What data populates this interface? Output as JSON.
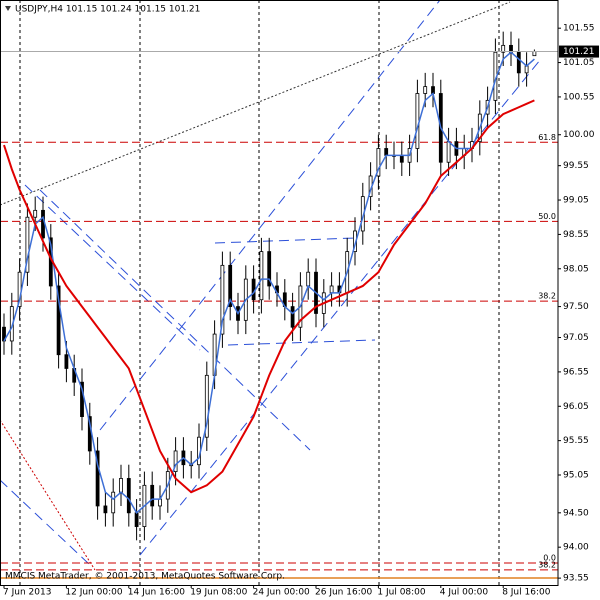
{
  "chart_data": {
    "type": "candlestick",
    "title": "USDJPY,H4  101.15 101.24 101.15 101.21",
    "footer": "MMCIS MetaTrader, © 2001-2013, MetaQuotes Software Corp.",
    "categories": [
      "7 Jun 2013",
      null,
      null,
      null,
      null,
      null,
      null,
      null,
      "12 Jun 00:00",
      null,
      null,
      null,
      null,
      null,
      null,
      null,
      "14 Jun 16:00",
      null,
      null,
      null,
      null,
      null,
      null,
      null,
      "19 Jun 08:00",
      null,
      null,
      null,
      null,
      null,
      null,
      null,
      "24 Jun 00:00",
      null,
      null,
      null,
      null,
      null,
      null,
      null,
      "26 Jun 16:00",
      null,
      null,
      null,
      null,
      null,
      null,
      null,
      "1 Jul 08:00",
      null,
      null,
      null,
      null,
      null,
      null,
      null,
      "4 Jul 00:00",
      null,
      null,
      null,
      null,
      null,
      null,
      null,
      "8 Jul 16:00",
      null,
      null,
      null,
      null
    ],
    "open": [
      97.2,
      97.0,
      97.5,
      98.0,
      98.8,
      98.9,
      98.5,
      97.8,
      96.8,
      96.6,
      96.4,
      95.9,
      95.4,
      94.6,
      94.5,
      94.8,
      95.0,
      94.5,
      94.3,
      94.9,
      94.6,
      94.7,
      95.1,
      95.4,
      95.2,
      95.2,
      95.6,
      96.5,
      97.1,
      98.1,
      97.5,
      97.3,
      97.9,
      97.6,
      98.3,
      97.8,
      97.7,
      97.5,
      97.2,
      97.8,
      98.0,
      97.4,
      97.7,
      97.8,
      97.7,
      98.3,
      98.6,
      99.1,
      99.4,
      99.8,
      99.7,
      99.7,
      99.6,
      99.8,
      100.6,
      100.7,
      100.6,
      99.6,
      99.9,
      99.7,
      99.8,
      99.9,
      100.3,
      100.5,
      101.2,
      101.3,
      101.2,
      100.9,
      101.15
    ],
    "high": [
      97.4,
      97.7,
      98.2,
      99.0,
      99.1,
      99.1,
      98.7,
      98.0,
      97.0,
      96.8,
      96.6,
      96.1,
      95.6,
      94.8,
      95.0,
      95.2,
      95.2,
      94.7,
      95.1,
      95.1,
      94.9,
      95.3,
      95.6,
      95.6,
      95.4,
      95.8,
      96.7,
      97.3,
      98.3,
      98.3,
      97.7,
      98.1,
      98.1,
      98.5,
      98.5,
      98.0,
      97.9,
      97.7,
      98.0,
      98.2,
      98.2,
      97.9,
      98.0,
      98.0,
      98.5,
      98.8,
      99.3,
      99.6,
      100.0,
      100.0,
      99.9,
      99.9,
      100.0,
      100.8,
      100.9,
      100.9,
      100.8,
      100.1,
      100.1,
      100.0,
      100.1,
      100.5,
      100.7,
      101.4,
      101.5,
      101.5,
      101.4,
      101.2,
      101.24
    ],
    "low": [
      96.8,
      96.8,
      97.3,
      97.8,
      98.6,
      98.3,
      97.6,
      96.6,
      96.4,
      96.2,
      95.7,
      95.2,
      94.4,
      94.3,
      94.3,
      94.6,
      94.3,
      94.1,
      94.1,
      94.4,
      94.4,
      94.5,
      94.9,
      95.0,
      95.0,
      95.0,
      95.4,
      96.3,
      96.9,
      97.3,
      97.1,
      97.1,
      97.4,
      97.4,
      97.6,
      97.5,
      97.3,
      97.0,
      97.0,
      97.6,
      97.2,
      97.2,
      97.5,
      97.5,
      97.5,
      98.1,
      98.4,
      98.9,
      99.2,
      99.5,
      99.5,
      99.4,
      99.4,
      99.6,
      100.4,
      100.4,
      99.4,
      99.4,
      99.5,
      99.5,
      99.6,
      99.7,
      100.1,
      100.3,
      101.0,
      101.0,
      100.7,
      100.7,
      101.15
    ],
    "close": [
      97.0,
      97.5,
      98.0,
      98.8,
      98.9,
      98.5,
      97.8,
      96.8,
      96.6,
      96.4,
      95.9,
      95.4,
      94.6,
      94.5,
      94.8,
      95.0,
      94.5,
      94.3,
      94.9,
      94.6,
      94.7,
      95.1,
      95.4,
      95.2,
      95.2,
      95.6,
      96.5,
      97.1,
      98.1,
      97.5,
      97.3,
      97.9,
      97.6,
      98.3,
      97.8,
      97.7,
      97.5,
      97.2,
      97.8,
      98.0,
      97.4,
      97.7,
      97.8,
      97.7,
      98.3,
      98.6,
      99.1,
      99.4,
      99.8,
      99.7,
      99.7,
      99.6,
      99.8,
      100.6,
      100.7,
      100.6,
      99.6,
      99.9,
      99.7,
      99.8,
      99.9,
      100.3,
      100.5,
      101.2,
      101.3,
      101.2,
      100.9,
      101.0,
      101.21
    ],
    "indicators": [
      {
        "color": "#3d6fd6",
        "values": [
          97.0,
          97.2,
          97.6,
          98.2,
          98.7,
          98.8,
          98.4,
          97.6,
          96.9,
          96.6,
          96.3,
          95.8,
          95.2,
          94.8,
          94.7,
          94.8,
          94.7,
          94.5,
          94.6,
          94.7,
          94.7,
          94.9,
          95.2,
          95.3,
          95.2,
          95.3,
          95.8,
          96.5,
          97.3,
          97.6,
          97.4,
          97.6,
          97.7,
          97.9,
          97.9,
          97.7,
          97.5,
          97.4,
          97.5,
          97.8,
          97.7,
          97.6,
          97.7,
          97.7,
          98.0,
          98.4,
          98.8,
          99.2,
          99.5,
          99.7,
          99.7,
          99.7,
          99.7,
          100.1,
          100.5,
          100.6,
          100.1,
          99.9,
          99.8,
          99.8,
          99.8,
          100.1,
          100.4,
          100.8,
          101.1,
          101.2,
          101.1,
          101.0,
          101.1
        ]
      },
      {
        "color": "#e00000",
        "values": [
          99.85,
          99.5,
          99.2,
          98.95,
          98.7,
          98.45,
          98.2,
          98.0,
          97.8,
          97.65,
          97.5,
          97.35,
          97.2,
          97.05,
          96.9,
          96.75,
          96.6,
          96.3,
          96.0,
          95.7,
          95.4,
          95.2,
          95.0,
          94.9,
          94.8,
          94.85,
          94.9,
          95.0,
          95.1,
          95.3,
          95.5,
          95.7,
          95.9,
          96.2,
          96.5,
          96.75,
          97.0,
          97.15,
          97.3,
          97.4,
          97.5,
          97.55,
          97.6,
          97.65,
          97.7,
          97.75,
          97.8,
          97.9,
          98.0,
          98.2,
          98.4,
          98.55,
          98.7,
          98.85,
          99.0,
          99.2,
          99.4,
          99.5,
          99.6,
          99.7,
          99.8,
          99.95,
          100.1,
          100.2,
          100.3,
          100.35,
          100.4,
          100.45,
          100.5
        ]
      }
    ],
    "fib_levels": [
      {
        "value": 99.89,
        "label": "61.8"
      },
      {
        "value": 98.74,
        "label": "50.0"
      },
      {
        "value": 97.58,
        "label": "38.2"
      },
      {
        "value": 93.77,
        "label": "0.0"
      },
      {
        "value": 93.67,
        "label": "38.2"
      }
    ],
    "fib_color": "#cc0000",
    "last_price": {
      "value": 101.21,
      "label": "101.21"
    },
    "ylim": [
      93.45,
      101.96
    ],
    "yticks": [
      101.55,
      101.05,
      100.55,
      {
        "value": 100,
        "label": "100.00"
      },
      99.55,
      99.05,
      98.55,
      98.05,
      {
        "value": 97.5,
        "label": "97.50"
      },
      97.05,
      96.55,
      96.05,
      95.55,
      95.05,
      {
        "value": 94.5,
        "label": "94.50"
      },
      {
        "value": 94,
        "label": "94.00"
      },
      93.55
    ]
  }
}
